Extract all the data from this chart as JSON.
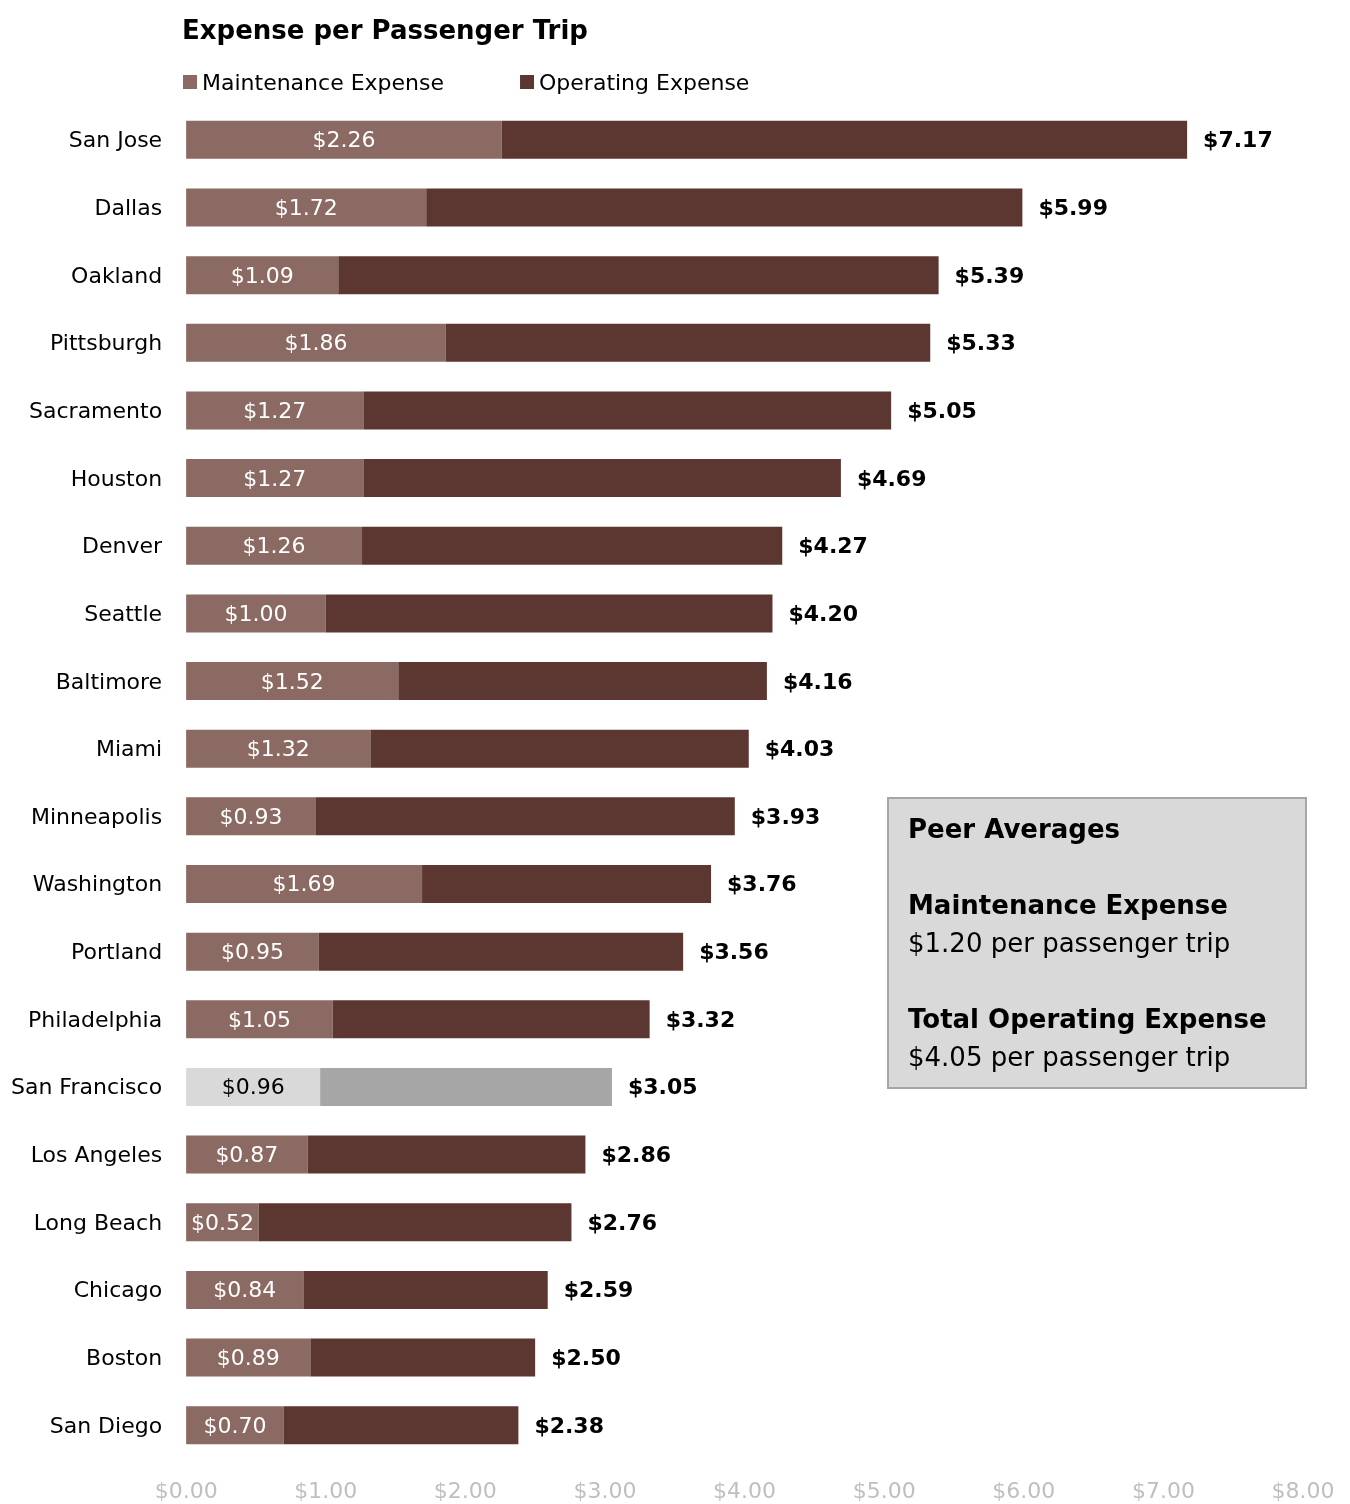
{
  "chart_data": {
    "type": "bar",
    "orientation": "horizontal",
    "stacked": true,
    "title": "Expense per Passenger Trip",
    "categories": [
      "San Jose",
      "Dallas",
      "Oakland",
      "Pittsburgh",
      "Sacramento",
      "Houston",
      "Denver",
      "Seattle",
      "Baltimore",
      "Miami",
      "Minneapolis",
      "Washington",
      "Portland",
      "Philadelphia",
      "San Francisco",
      "Los Angeles",
      "Long Beach",
      "Chicago",
      "Boston",
      "San Diego"
    ],
    "series": [
      {
        "name": "Maintenance Expense",
        "color": "#8a6a62",
        "colors": [
          "#8a6a62",
          "#8a6a62",
          "#8a6a62",
          "#8a6a62",
          "#8a6a62",
          "#8a6a62",
          "#8a6a62",
          "#8a6a62",
          "#8a6a62",
          "#8a6a62",
          "#8a6a62",
          "#8a6a62",
          "#8a6a62",
          "#8a6a62",
          "#d9d9d9",
          "#8a6a62",
          "#8a6a62",
          "#8a6a62",
          "#8a6a62",
          "#8a6a62"
        ],
        "values": [
          2.26,
          1.72,
          1.09,
          1.86,
          1.27,
          1.27,
          1.26,
          1.0,
          1.52,
          1.32,
          0.93,
          1.69,
          0.95,
          1.05,
          0.96,
          0.87,
          0.52,
          0.84,
          0.89,
          0.7
        ],
        "value_labels": [
          "$2.26",
          "$1.72",
          "$1.09",
          "$1.86",
          "$1.27",
          "$1.27",
          "$1.26",
          "$1.00",
          "$1.52",
          "$1.32",
          "$0.93",
          "$1.69",
          "$0.95",
          "$1.05",
          "$0.96",
          "$0.87",
          "$0.52",
          "$0.84",
          "$0.89",
          "$0.70"
        ]
      },
      {
        "name": "Operating Expense",
        "color": "#5c3630",
        "colors": [
          "#5c3630",
          "#5c3630",
          "#5c3630",
          "#5c3630",
          "#5c3630",
          "#5c3630",
          "#5c3630",
          "#5c3630",
          "#5c3630",
          "#5c3630",
          "#5c3630",
          "#5c3630",
          "#5c3630",
          "#5c3630",
          "#a6a6a6",
          "#5c3630",
          "#5c3630",
          "#5c3630",
          "#5c3630",
          "#5c3630"
        ],
        "values": [
          4.91,
          4.27,
          4.3,
          3.47,
          3.78,
          3.42,
          3.01,
          3.2,
          2.64,
          2.71,
          3.0,
          2.07,
          2.61,
          2.27,
          2.09,
          1.99,
          2.24,
          1.75,
          1.61,
          1.68
        ]
      }
    ],
    "totals": [
      "$7.17",
      "$5.99",
      "$5.39",
      "$5.33",
      "$5.05",
      "$4.69",
      "$4.27",
      "$4.20",
      "$4.16",
      "$4.03",
      "$3.93",
      "$3.76",
      "$3.56",
      "$3.32",
      "$3.05",
      "$2.86",
      "$2.76",
      "$2.59",
      "$2.50",
      "$2.38"
    ],
    "xlim": [
      0,
      8
    ],
    "xticks": [
      {
        "value": 0,
        "label": "$0.00"
      },
      {
        "value": 1,
        "label": "$1.00"
      },
      {
        "value": 2,
        "label": "$2.00"
      },
      {
        "value": 3,
        "label": "$3.00"
      },
      {
        "value": 4,
        "label": "$4.00"
      },
      {
        "value": 5,
        "label": "$5.00"
      },
      {
        "value": 6,
        "label": "$6.00"
      },
      {
        "value": 7,
        "label": "$7.00"
      },
      {
        "value": 8,
        "label": "$8.00"
      }
    ],
    "legend": "top left",
    "annotations": [
      "Peer Averages",
      "Maintenance Expense",
      "$1.20 per passenger trip",
      "Total Operating Expense",
      "$4.05 per passenger trip"
    ]
  }
}
